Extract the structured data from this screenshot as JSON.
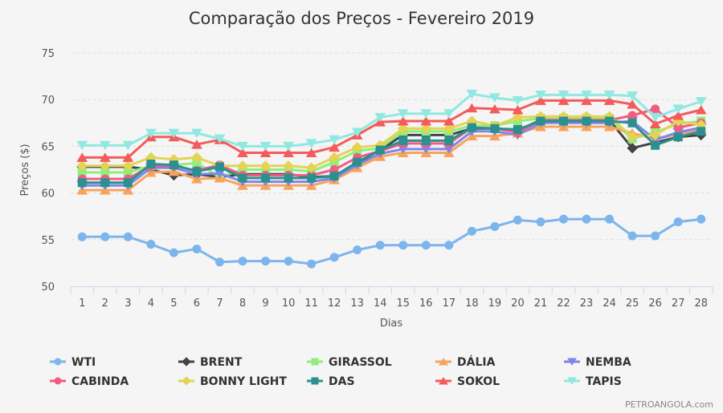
{
  "chart_data": {
    "type": "line",
    "title": "Comparação dos Preços - Fevereiro 2019",
    "xlabel": "Dias",
    "ylabel": "Preços ($)",
    "ylim": [
      50,
      75
    ],
    "yticks": [
      50,
      55,
      60,
      65,
      70,
      75
    ],
    "grid": true,
    "legend_position": "bottom",
    "x": [
      1,
      2,
      3,
      4,
      5,
      6,
      7,
      8,
      9,
      10,
      11,
      12,
      13,
      14,
      15,
      16,
      17,
      18,
      19,
      20,
      21,
      22,
      23,
      24,
      25,
      26,
      27,
      28
    ],
    "series": [
      {
        "name": "WTI",
        "color": "#7cb5ec",
        "marker": "circle",
        "values": [
          55.3,
          55.3,
          55.3,
          54.5,
          53.6,
          54.0,
          52.6,
          52.7,
          52.7,
          52.7,
          52.4,
          53.1,
          53.9,
          54.4,
          54.4,
          54.4,
          54.4,
          55.9,
          56.4,
          57.1,
          56.9,
          57.2,
          57.2,
          57.2,
          55.4,
          55.4,
          56.9,
          57.2
        ]
      },
      {
        "name": "BRENT",
        "color": "#434348",
        "marker": "diamond",
        "values": [
          62.8,
          62.8,
          62.8,
          62.5,
          61.9,
          62.0,
          61.7,
          62.0,
          62.0,
          62.0,
          61.7,
          61.8,
          63.2,
          64.6,
          66.2,
          66.2,
          66.2,
          66.9,
          66.9,
          66.7,
          67.8,
          67.8,
          67.8,
          67.8,
          64.8,
          65.4,
          66.0,
          66.2
        ]
      },
      {
        "name": "GIRASSOL",
        "color": "#90ed7d",
        "marker": "square",
        "values": [
          62.2,
          62.2,
          62.2,
          62.9,
          63.0,
          63.2,
          61.7,
          62.5,
          62.5,
          62.5,
          62.3,
          63.3,
          64.5,
          64.8,
          66.6,
          66.6,
          66.6,
          67.2,
          67.2,
          67.7,
          68.0,
          68.0,
          68.0,
          68.0,
          65.8,
          66.5,
          67.4,
          67.7
        ]
      },
      {
        "name": "DÁLIA",
        "color": "#f7a35c",
        "marker": "triangle",
        "values": [
          60.3,
          60.3,
          60.3,
          62.2,
          62.3,
          61.5,
          61.6,
          60.8,
          60.8,
          60.8,
          60.8,
          61.4,
          62.7,
          63.9,
          64.3,
          64.3,
          64.3,
          66.1,
          66.1,
          66.4,
          67.1,
          67.1,
          67.1,
          67.1,
          66.4,
          65.8,
          66.3,
          66.8
        ]
      },
      {
        "name": "NEMBA",
        "color": "#8085e9",
        "marker": "triangle-down",
        "values": [
          60.8,
          60.8,
          60.8,
          62.7,
          62.7,
          62.0,
          62.1,
          61.2,
          61.2,
          61.2,
          61.2,
          61.6,
          63.0,
          64.2,
          64.7,
          64.7,
          64.7,
          66.6,
          66.6,
          66.2,
          67.5,
          67.5,
          67.5,
          67.5,
          67.7,
          65.7,
          66.5,
          67.0
        ]
      },
      {
        "name": "CABINDA",
        "color": "#f15c80",
        "marker": "circle",
        "values": [
          61.5,
          61.5,
          61.5,
          62.9,
          62.9,
          62.4,
          63.0,
          61.9,
          61.9,
          61.9,
          61.9,
          62.5,
          63.8,
          64.5,
          65.3,
          65.3,
          65.3,
          67.0,
          66.9,
          66.5,
          67.8,
          67.8,
          67.8,
          67.8,
          68.3,
          69.0,
          67.0,
          67.5
        ]
      },
      {
        "name": "BONNY LIGHT",
        "color": "#e4d354",
        "marker": "diamond",
        "values": [
          62.9,
          62.9,
          62.9,
          63.8,
          63.6,
          63.8,
          62.9,
          62.9,
          62.9,
          62.9,
          62.7,
          63.8,
          64.9,
          65.1,
          66.9,
          66.9,
          66.9,
          67.7,
          67.2,
          68.1,
          68.2,
          68.2,
          68.2,
          68.2,
          66.0,
          66.2,
          67.7,
          67.3
        ]
      },
      {
        "name": "DAS",
        "color": "#2b908f",
        "marker": "square",
        "values": [
          61.1,
          61.1,
          61.1,
          63.1,
          63.0,
          62.3,
          62.8,
          61.6,
          61.6,
          61.6,
          61.6,
          61.8,
          63.3,
          64.6,
          65.6,
          65.6,
          65.6,
          67.0,
          66.9,
          66.8,
          67.7,
          67.7,
          67.7,
          67.7,
          67.5,
          65.1,
          66.0,
          66.6
        ]
      },
      {
        "name": "SOKOL",
        "color": "#f45b5b",
        "marker": "triangle",
        "values": [
          63.8,
          63.8,
          63.8,
          66.0,
          66.0,
          65.2,
          65.7,
          64.3,
          64.3,
          64.3,
          64.3,
          64.9,
          66.2,
          67.6,
          67.7,
          67.7,
          67.7,
          69.1,
          69.0,
          68.9,
          69.9,
          69.9,
          69.9,
          69.9,
          69.5,
          67.4,
          68.3,
          68.9
        ]
      },
      {
        "name": "TAPIS",
        "color": "#91e8e1",
        "marker": "triangle-down",
        "values": [
          65.1,
          65.1,
          65.1,
          66.4,
          66.4,
          66.4,
          65.8,
          65.0,
          65.0,
          65.0,
          65.3,
          65.7,
          66.5,
          68.1,
          68.5,
          68.5,
          68.5,
          70.6,
          70.2,
          69.9,
          70.5,
          70.5,
          70.5,
          70.5,
          70.4,
          68.1,
          69.0,
          69.8
        ]
      }
    ]
  },
  "credit": "PETROANGOLA.com"
}
